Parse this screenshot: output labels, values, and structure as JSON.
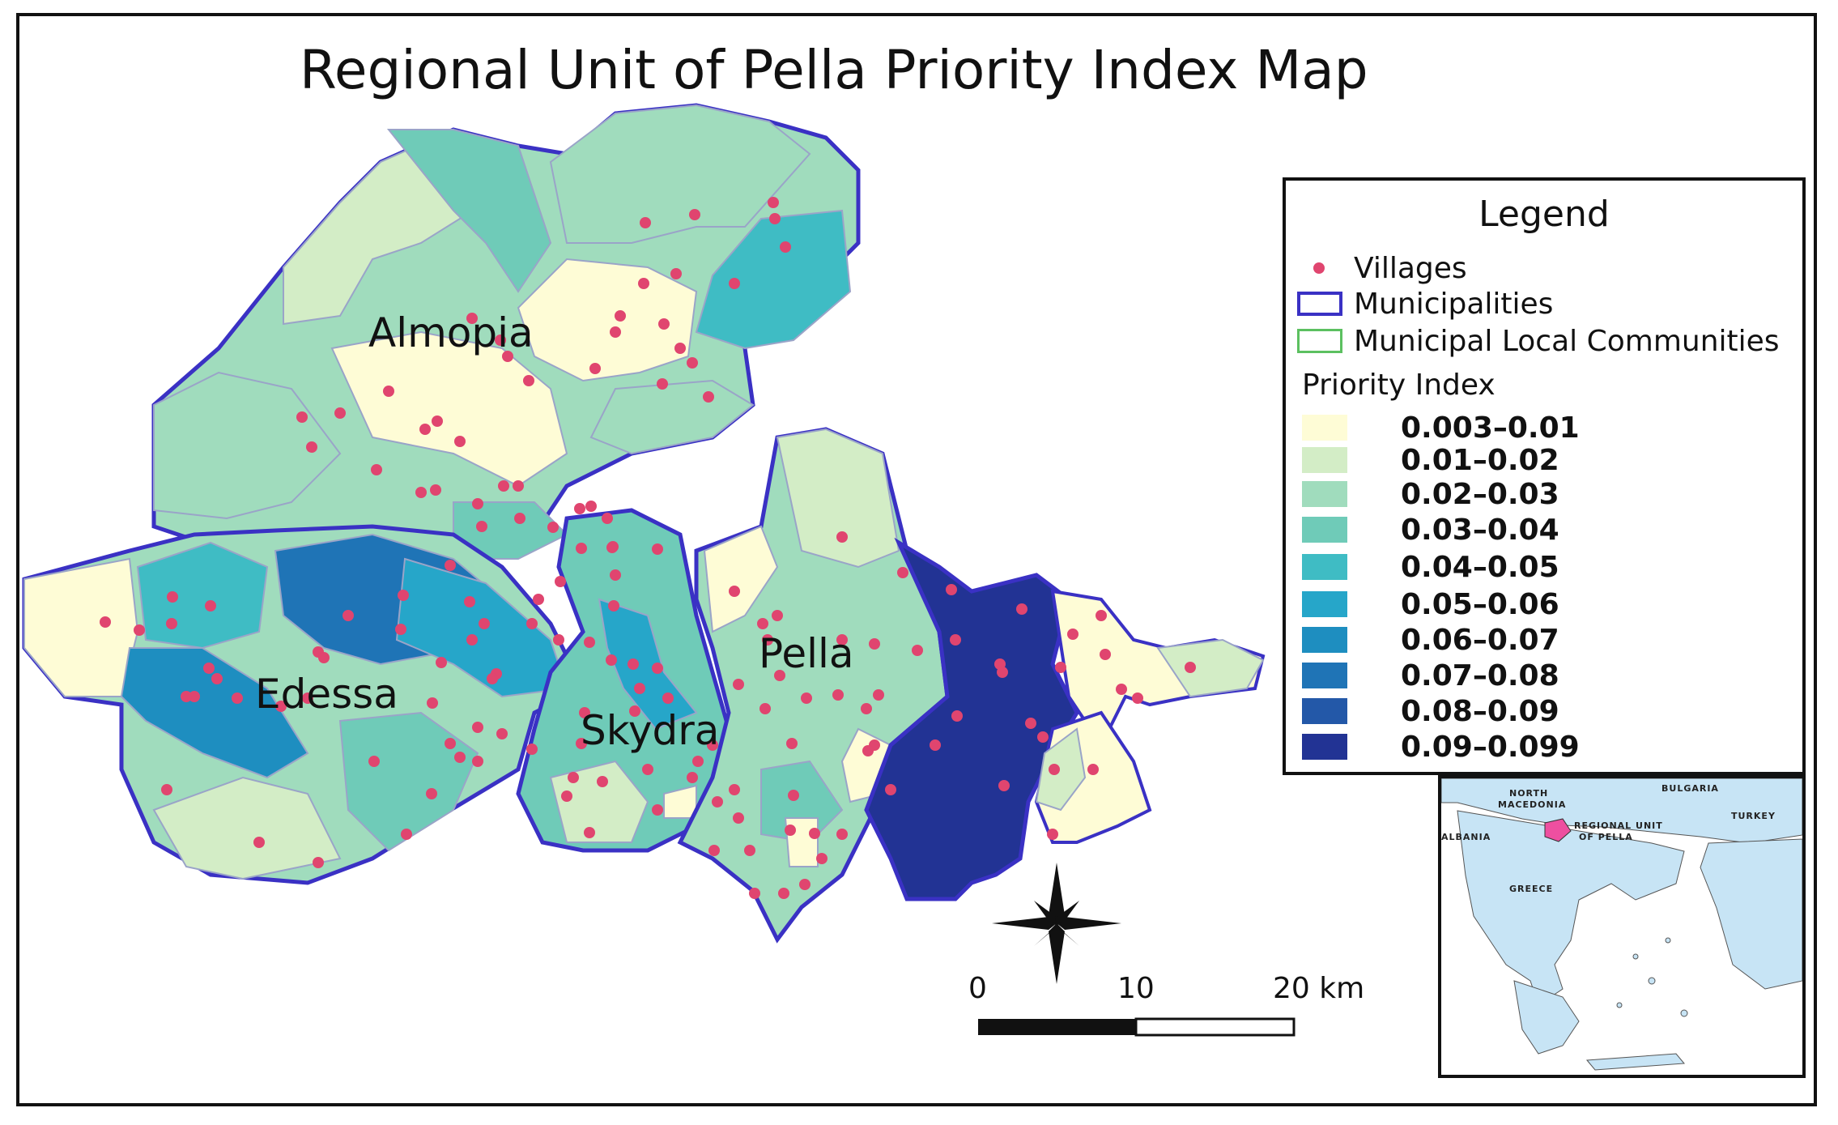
{
  "title": "Regional Unit of Pella Priority Index Map",
  "municipalities": [
    {
      "name": "Almopia"
    },
    {
      "name": "Edessa"
    },
    {
      "name": "Skydra"
    },
    {
      "name": "Pella"
    }
  ],
  "legend": {
    "title": "Legend",
    "villages_label": "Villages",
    "municipalities_label": "Municipalities",
    "communities_label": "Municipal Local Communities",
    "priority_title": "Priority Index",
    "classes": [
      {
        "label": "0.003–0.01",
        "color": "#fefcd6"
      },
      {
        "label": "0.01–0.02",
        "color": "#d3edc6"
      },
      {
        "label": "0.02–0.03",
        "color": "#a0dcbd"
      },
      {
        "label": "0.03–0.04",
        "color": "#6fcbb8"
      },
      {
        "label": "0.04–0.05",
        "color": "#3fbcc4"
      },
      {
        "label": "0.05–0.06",
        "color": "#26a6c9"
      },
      {
        "label": "0.06–0.07",
        "color": "#1e8ec0"
      },
      {
        "label": "0.07–0.08",
        "color": "#1f74b6"
      },
      {
        "label": "0.08–0.09",
        "color": "#2358a8"
      },
      {
        "label": "0.09–0.099",
        "color": "#223394"
      }
    ]
  },
  "scale_bar": {
    "labels": [
      "0",
      "10",
      "20 km"
    ]
  },
  "inset": {
    "labels": [
      "BULGARIA",
      "NORTH",
      "MACEDONIA",
      "TURKEY",
      "ALBANIA",
      "REGIONAL UNIT",
      "OF PELLA",
      "GREECE"
    ]
  },
  "colors": {
    "village": "#e0456f",
    "municipality_border": "#3a31c4",
    "community_border": "#5cc060",
    "land": "#c7e4f5"
  }
}
